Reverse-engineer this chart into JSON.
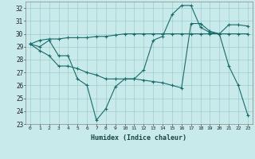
{
  "xlabel": "Humidex (Indice chaleur)",
  "xlim": [
    -0.5,
    23.5
  ],
  "ylim": [
    23,
    32.5
  ],
  "yticks": [
    23,
    24,
    25,
    26,
    27,
    28,
    29,
    30,
    31,
    32
  ],
  "xticks": [
    0,
    1,
    2,
    3,
    4,
    5,
    6,
    7,
    8,
    9,
    10,
    11,
    12,
    13,
    14,
    15,
    16,
    17,
    18,
    19,
    20,
    21,
    22,
    23
  ],
  "background_color": "#c8eaea",
  "grid_color": "#a0cccc",
  "line_color": "#1a6b6b",
  "line1_x": [
    0,
    1,
    2,
    3,
    4,
    5,
    6,
    7,
    8,
    9,
    10,
    11,
    12,
    13,
    14,
    15,
    16,
    17,
    18,
    19,
    20,
    21,
    22,
    23
  ],
  "line1_y": [
    29.2,
    29.0,
    29.5,
    28.3,
    28.3,
    26.5,
    26.0,
    23.3,
    24.2,
    25.9,
    26.5,
    26.5,
    27.2,
    29.5,
    29.8,
    31.5,
    32.2,
    32.2,
    30.5,
    30.1,
    30.0,
    27.5,
    26.0,
    23.7
  ],
  "line2_x": [
    0,
    1,
    2,
    3,
    4,
    5,
    6,
    7,
    8,
    9,
    10,
    11,
    12,
    13,
    14,
    15,
    16,
    17,
    18,
    19,
    20,
    21,
    22,
    23
  ],
  "line2_y": [
    29.2,
    29.5,
    29.6,
    29.6,
    29.7,
    29.7,
    29.7,
    29.8,
    29.8,
    29.9,
    30.0,
    30.0,
    30.0,
    30.0,
    30.0,
    30.0,
    30.0,
    30.0,
    30.0,
    30.0,
    30.0,
    30.0,
    30.0,
    30.0
  ],
  "line3_x": [
    0,
    1,
    2,
    3,
    4,
    5,
    6,
    7,
    8,
    9,
    10,
    11,
    12,
    13,
    14,
    15,
    16,
    17,
    18,
    19,
    20,
    21,
    22,
    23
  ],
  "line3_y": [
    29.2,
    28.7,
    28.3,
    27.5,
    27.5,
    27.3,
    27.0,
    26.8,
    26.5,
    26.5,
    26.5,
    26.5,
    26.4,
    26.3,
    26.2,
    26.0,
    25.8,
    30.8,
    30.8,
    30.2,
    30.0,
    30.7,
    30.7,
    30.6
  ]
}
